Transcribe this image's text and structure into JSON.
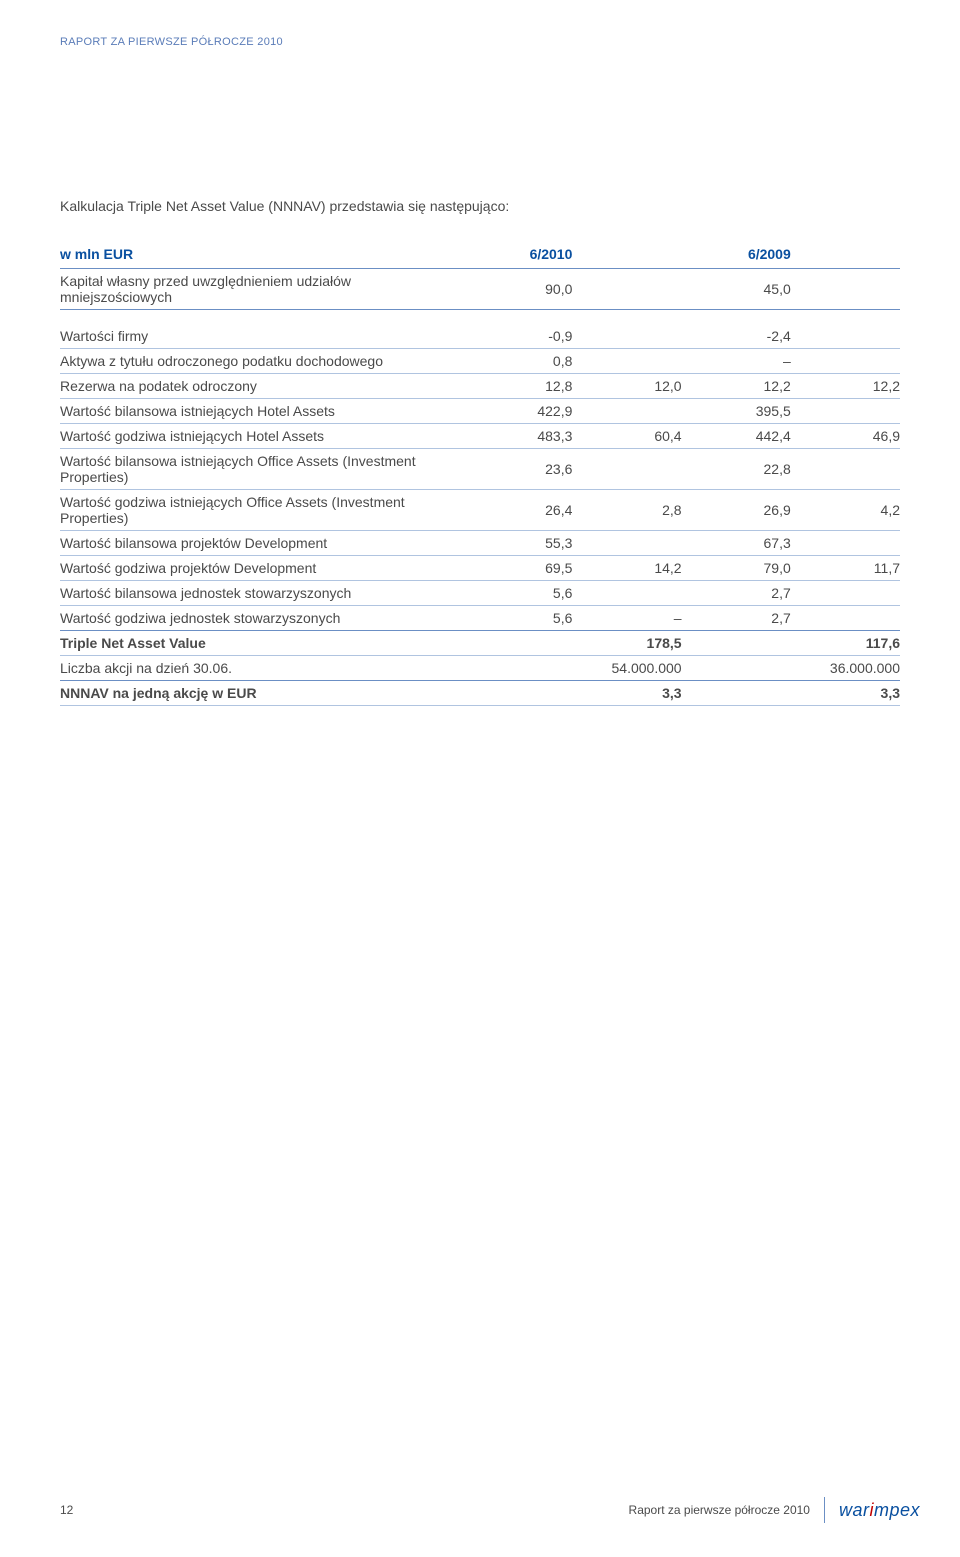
{
  "colors": {
    "header_text": "#5a7cb8",
    "body_text": "#4a4a4a",
    "table_header_text": "#0a50a0",
    "rule_strong": "#6b8fc4",
    "rule_light": "#b0c4e0",
    "logo_blue": "#0a50a0",
    "logo_red": "#c00000",
    "background": "#ffffff"
  },
  "typography": {
    "body_font": "Arial, Helvetica, sans-serif",
    "body_size_pt": 10.5,
    "header_size_pt": 8,
    "logo_size_pt": 14
  },
  "header": {
    "title": "RAPORT ZA PIERWSZE PÓŁROCZE 2010"
  },
  "intro": "Kalkulacja Triple Net Asset Value (NNNAV) przedstawia się następująco:",
  "table": {
    "columns": [
      {
        "key": "label",
        "header": "w mln EUR",
        "align": "left"
      },
      {
        "key": "c1",
        "header": "6/2010",
        "align": "right"
      },
      {
        "key": "c2",
        "header": "",
        "align": "right"
      },
      {
        "key": "c3",
        "header": "6/2009",
        "align": "right"
      },
      {
        "key": "c4",
        "header": "",
        "align": "right"
      }
    ],
    "rows": [
      {
        "type": "data",
        "style": "section",
        "label": "Kapitał własny przed uwzględnieniem udziałów mniejszościowych",
        "c1": "90,0",
        "c2": "",
        "c3": "45,0",
        "c4": ""
      },
      {
        "type": "spacer"
      },
      {
        "type": "data",
        "style": "data",
        "label": "Wartości firmy",
        "c1": "-0,9",
        "c2": "",
        "c3": "-2,4",
        "c4": ""
      },
      {
        "type": "data",
        "style": "data",
        "label": "Aktywa z tytułu odroczonego podatku dochodowego",
        "c1": "0,8",
        "c2": "",
        "c3": "–",
        "c4": ""
      },
      {
        "type": "data",
        "style": "data",
        "label": "Rezerwa na podatek odroczony",
        "c1": "12,8",
        "c2": "12,0",
        "c3": "12,2",
        "c4": "12,2"
      },
      {
        "type": "data",
        "style": "data",
        "label": "Wartość bilansowa istniejących Hotel Assets",
        "c1": "422,9",
        "c2": "",
        "c3": "395,5",
        "c4": ""
      },
      {
        "type": "data",
        "style": "data",
        "label": "Wartość godziwa istniejących Hotel Assets",
        "c1": "483,3",
        "c2": "60,4",
        "c3": "442,4",
        "c4": "46,9"
      },
      {
        "type": "data",
        "style": "data",
        "label": "Wartość bilansowa istniejących Office Assets (Investment Properties)",
        "c1": "23,6",
        "c2": "",
        "c3": "22,8",
        "c4": ""
      },
      {
        "type": "data",
        "style": "data",
        "label": "Wartość godziwa istniejących Office Assets (Investment Properties)",
        "c1": "26,4",
        "c2": "2,8",
        "c3": "26,9",
        "c4": "4,2"
      },
      {
        "type": "data",
        "style": "data",
        "label": "Wartość bilansowa projektów Development",
        "c1": "55,3",
        "c2": "",
        "c3": "67,3",
        "c4": ""
      },
      {
        "type": "data",
        "style": "data",
        "label": "Wartość godziwa projektów Development",
        "c1": "69,5",
        "c2": "14,2",
        "c3": "79,0",
        "c4": "11,7"
      },
      {
        "type": "data",
        "style": "data",
        "label": "Wartość bilansowa jednostek stowarzyszonych",
        "c1": "5,6",
        "c2": "",
        "c3": "2,7",
        "c4": ""
      },
      {
        "type": "data",
        "style": "section",
        "label": "Wartość godziwa jednostek stowarzyszonych",
        "c1": "5,6",
        "c2": "–",
        "c3": "2,7",
        "c4": ""
      },
      {
        "type": "data",
        "style": "data",
        "bold": true,
        "label": "Triple Net Asset Value",
        "c1": "",
        "c2": "178,5",
        "c3": "",
        "c4": "117,6"
      },
      {
        "type": "data",
        "style": "section",
        "label": "Liczba akcji na dzień 30.06.",
        "c1": "",
        "c2": "54.000.000",
        "c3": "",
        "c4": "36.000.000"
      },
      {
        "type": "data",
        "style": "data",
        "bold": true,
        "label": "NNNAV na jedną akcję w EUR",
        "c1": "",
        "c2": "3,3",
        "c3": "",
        "c4": "3,3"
      }
    ]
  },
  "footer": {
    "page_number": "12",
    "report_label": "Raport za pierwsze półrocze 2010",
    "logo_part1": "war",
    "logo_accent": "i",
    "logo_part2": "mpex"
  }
}
